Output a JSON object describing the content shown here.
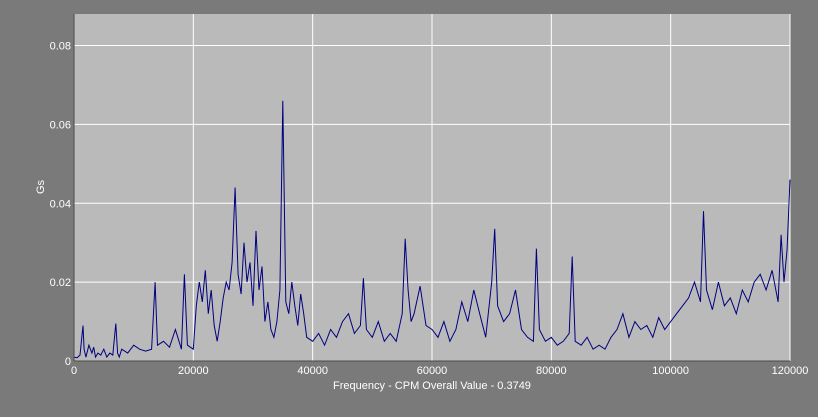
{
  "chart_data": {
    "type": "line",
    "xlabel": "Frequency - CPM  Overall Value - 0.3749",
    "ylabel": "Gs",
    "xlim": [
      0,
      120000
    ],
    "ylim": [
      0,
      0.088
    ],
    "x_ticks": [
      0,
      20000,
      40000,
      60000,
      80000,
      100000,
      120000
    ],
    "x_tick_labels": [
      "0",
      "20000",
      "40000",
      "60000",
      "80000",
      "100000",
      "120000"
    ],
    "y_ticks": [
      0,
      0.02,
      0.04,
      0.06,
      0.08
    ],
    "y_tick_labels": [
      "0",
      "0.02",
      "0.04",
      "0.06",
      "0.08"
    ],
    "grid": true,
    "colors": {
      "background": "#7a7a7a",
      "plot_area": "#bababa",
      "grid": "#ffffff",
      "line": "#00007f"
    },
    "series": [
      {
        "x": [
          0,
          500,
          1000,
          1500,
          1700,
          2000,
          2500,
          3000,
          3300,
          3600,
          4000,
          4500,
          5000,
          5500,
          6000,
          6500,
          7000,
          7300,
          7600,
          8000,
          9000,
          10000,
          11000,
          12000,
          13000,
          13600,
          14000,
          15000,
          16000,
          17000,
          18000,
          18500,
          19000,
          20000,
          20500,
          21000,
          21500,
          22000,
          22500,
          23000,
          23500,
          24000,
          24500,
          25000,
          25500,
          26000,
          26500,
          27000,
          27500,
          28000,
          28500,
          29000,
          29500,
          30000,
          30500,
          31000,
          31500,
          32000,
          32500,
          33000,
          33500,
          34000,
          34500,
          35000,
          35500,
          36000,
          36500,
          37000,
          37500,
          38000,
          38500,
          39000,
          40000,
          41000,
          42000,
          43000,
          44000,
          45000,
          46000,
          47000,
          48000,
          48500,
          49000,
          50000,
          51000,
          52000,
          53000,
          54000,
          55000,
          55500,
          56000,
          56500,
          57000,
          58000,
          59000,
          60000,
          61000,
          62000,
          63000,
          64000,
          65000,
          66000,
          67000,
          68000,
          69000,
          70000,
          70500,
          71000,
          72000,
          73000,
          74000,
          75000,
          76000,
          77000,
          77500,
          78000,
          79000,
          80000,
          81000,
          82000,
          83000,
          83500,
          84000,
          85000,
          86000,
          87000,
          88000,
          89000,
          90000,
          91000,
          92000,
          93000,
          94000,
          95000,
          96000,
          97000,
          98000,
          99000,
          100000,
          101000,
          102000,
          103000,
          104000,
          105000,
          105500,
          106000,
          107000,
          108000,
          109000,
          110000,
          111000,
          112000,
          113000,
          114000,
          115000,
          116000,
          117000,
          118000,
          118500,
          119000,
          119500,
          120000
        ],
        "y": [
          0.001,
          0.0008,
          0.0015,
          0.009,
          0.003,
          0.001,
          0.004,
          0.002,
          0.0035,
          0.001,
          0.002,
          0.0015,
          0.003,
          0.001,
          0.002,
          0.0015,
          0.0095,
          0.002,
          0.001,
          0.003,
          0.002,
          0.004,
          0.003,
          0.0025,
          0.003,
          0.02,
          0.004,
          0.005,
          0.0035,
          0.008,
          0.003,
          0.022,
          0.004,
          0.003,
          0.014,
          0.02,
          0.015,
          0.023,
          0.012,
          0.018,
          0.009,
          0.005,
          0.01,
          0.016,
          0.02,
          0.018,
          0.025,
          0.044,
          0.022,
          0.017,
          0.03,
          0.02,
          0.025,
          0.014,
          0.033,
          0.018,
          0.024,
          0.01,
          0.015,
          0.008,
          0.006,
          0.01,
          0.018,
          0.066,
          0.015,
          0.012,
          0.02,
          0.014,
          0.009,
          0.017,
          0.012,
          0.006,
          0.005,
          0.007,
          0.004,
          0.008,
          0.006,
          0.01,
          0.012,
          0.007,
          0.009,
          0.021,
          0.008,
          0.006,
          0.01,
          0.005,
          0.007,
          0.005,
          0.012,
          0.031,
          0.018,
          0.01,
          0.012,
          0.019,
          0.009,
          0.008,
          0.006,
          0.01,
          0.005,
          0.008,
          0.015,
          0.01,
          0.018,
          0.012,
          0.006,
          0.02,
          0.0335,
          0.014,
          0.01,
          0.012,
          0.018,
          0.008,
          0.006,
          0.005,
          0.0285,
          0.008,
          0.005,
          0.006,
          0.004,
          0.005,
          0.007,
          0.0265,
          0.005,
          0.004,
          0.006,
          0.003,
          0.004,
          0.003,
          0.006,
          0.008,
          0.012,
          0.006,
          0.01,
          0.008,
          0.009,
          0.006,
          0.011,
          0.008,
          0.01,
          0.012,
          0.014,
          0.016,
          0.02,
          0.015,
          0.038,
          0.018,
          0.013,
          0.02,
          0.014,
          0.016,
          0.012,
          0.018,
          0.015,
          0.02,
          0.022,
          0.018,
          0.023,
          0.015,
          0.032,
          0.02,
          0.028,
          0.046
        ]
      }
    ]
  }
}
